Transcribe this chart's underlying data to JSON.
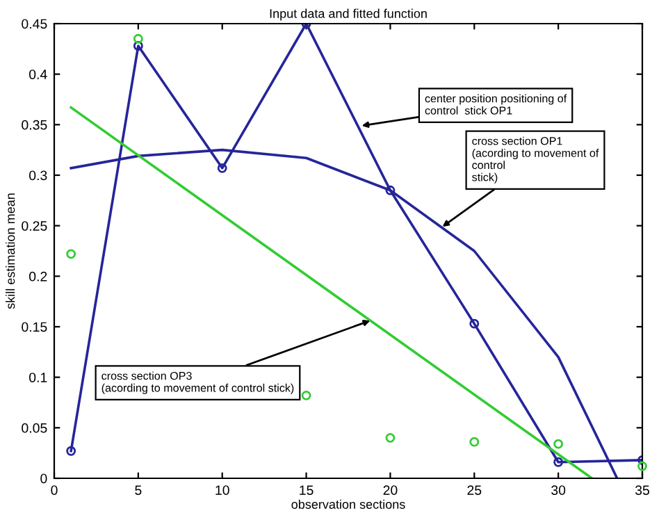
{
  "chart_data": {
    "type": "line",
    "title": "Input data and fitted function",
    "xlabel": "observation sections",
    "ylabel": "skill estimation mean",
    "xlim": [
      0,
      35
    ],
    "xticks": [
      0,
      5,
      10,
      15,
      20,
      25,
      30,
      35
    ],
    "ylim": [
      0,
      0.45
    ],
    "yticks": [
      0,
      0.05,
      0.1,
      0.15,
      0.2,
      0.25,
      0.3,
      0.35,
      0.4,
      0.45
    ],
    "grid": false,
    "legend": false,
    "series": [
      {
        "marker": "circle",
        "color": "#25259a",
        "x": [
          1,
          5,
          10,
          15,
          20,
          25,
          30,
          35
        ],
        "values": [
          0.027,
          0.428,
          0.307,
          0.45,
          0.285,
          0.153,
          0.016,
          0.018
        ]
      },
      {
        "marker": "none",
        "color": "#25259a",
        "x": [
          1,
          5,
          10,
          15,
          20,
          25,
          30,
          33.5
        ],
        "values": [
          0.307,
          0.319,
          0.325,
          0.317,
          0.285,
          0.225,
          0.12,
          0
        ]
      },
      {
        "marker": "none",
        "color": "#33cc33",
        "x": [
          1,
          32
        ],
        "values": [
          0.367,
          0
        ]
      },
      {
        "type": "scatter",
        "marker": "circle",
        "color": "#33cc33",
        "x": [
          1,
          5,
          15,
          20,
          25,
          30,
          35
        ],
        "values": [
          0.222,
          0.435,
          0.082,
          0.04,
          0.036,
          0.034,
          0.012
        ]
      }
    ],
    "annotations": [
      {
        "text": "center position positioning of\ncontrol  stick OP1",
        "x": 18.3,
        "y": 0.349
      },
      {
        "text": "cross section OP1\n(acording to movement of\ncontrol\nstick)",
        "x": 23.1,
        "y": 0.249
      },
      {
        "text": "cross section OP3\n(acording to movement of control stick)",
        "x": 18.8,
        "y": 0.156
      }
    ]
  }
}
